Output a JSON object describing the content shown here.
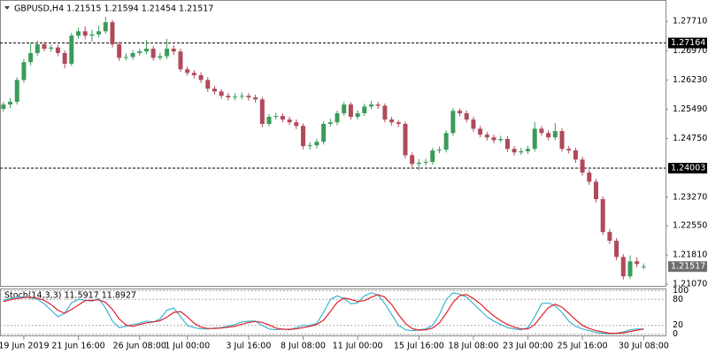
{
  "chart_data": [
    {
      "type": "candlestick",
      "title": "GBPUSD,H4  1.21515 1.21594 1.21454 1.21517",
      "up_color": "#3b9c5a",
      "down_color": "#b04a5a",
      "open": [
        1.255,
        1.2561,
        1.2568,
        1.2623,
        1.2668,
        1.2691,
        1.2713,
        1.2702,
        1.2705,
        1.2691,
        1.2664,
        1.2735,
        1.2746,
        1.2735,
        1.2738,
        1.2746,
        1.2769,
        1.2713,
        1.2679,
        1.2681,
        1.2691,
        1.2695,
        1.2702,
        1.2679,
        1.2683,
        1.2702,
        1.2695,
        1.265,
        1.2641,
        1.2635,
        1.2623,
        1.2601,
        1.2594,
        1.2583,
        1.2579,
        1.2581,
        1.2583,
        1.2579,
        1.2574,
        1.2512,
        1.253,
        1.2532,
        1.2523,
        1.2516,
        1.2507,
        1.2456,
        1.2458,
        1.2467,
        1.2512,
        1.2516,
        1.2539,
        1.2561,
        1.253,
        1.2539,
        1.2556,
        1.2561,
        1.2558,
        1.2523,
        1.2516,
        1.2512,
        1.2433,
        1.2411,
        1.2414,
        1.2416,
        1.2445,
        1.2447,
        1.2489,
        1.2545,
        1.2539,
        1.2523,
        1.25,
        1.2485,
        1.2478,
        1.2471,
        1.2474,
        1.2449,
        1.244,
        1.2443,
        1.2449,
        1.25,
        1.2489,
        1.2478,
        1.2494,
        1.2449,
        1.2445,
        1.2422,
        1.2389,
        1.2366,
        1.2322,
        1.2239,
        1.2217,
        1.2176,
        1.2127,
        1.2165,
        1.21515
      ],
      "high": [
        1.2568,
        1.2577,
        1.263,
        1.2676,
        1.2717,
        1.2722,
        1.272,
        1.2712,
        1.2712,
        1.2698,
        1.2742,
        1.2755,
        1.2758,
        1.275,
        1.276,
        1.2782,
        1.2775,
        1.272,
        1.269,
        1.2698,
        1.2702,
        1.2724,
        1.2709,
        1.2692,
        1.2727,
        1.2711,
        1.2702,
        1.2657,
        1.2648,
        1.2642,
        1.263,
        1.2608,
        1.26,
        1.259,
        1.259,
        1.2592,
        1.259,
        1.2586,
        1.258,
        1.2537,
        1.254,
        1.2539,
        1.253,
        1.2523,
        1.2513,
        1.2466,
        1.2475,
        1.2519,
        1.2525,
        1.2546,
        1.2568,
        1.2567,
        1.2547,
        1.2563,
        1.257,
        1.2568,
        1.2564,
        1.253,
        1.2522,
        1.2518,
        1.244,
        1.2423,
        1.2424,
        1.2452,
        1.2455,
        1.2496,
        1.2552,
        1.2551,
        1.2546,
        1.253,
        1.2507,
        1.2492,
        1.2485,
        1.2482,
        1.2481,
        1.2456,
        1.2452,
        1.2457,
        1.2517,
        1.2507,
        1.2496,
        1.2514,
        1.2501,
        1.2456,
        1.2452,
        1.2429,
        1.2396,
        1.2373,
        1.2329,
        1.2246,
        1.2224,
        1.2183,
        1.218,
        1.2175,
        1.21594
      ],
      "low": [
        1.2543,
        1.2552,
        1.2561,
        1.2616,
        1.266,
        1.2684,
        1.2695,
        1.2694,
        1.2683,
        1.2652,
        1.2658,
        1.2727,
        1.2726,
        1.272,
        1.273,
        1.274,
        1.2705,
        1.2671,
        1.2672,
        1.2674,
        1.2684,
        1.2688,
        1.2672,
        1.2673,
        1.2676,
        1.2686,
        1.2643,
        1.2634,
        1.2627,
        1.2615,
        1.2593,
        1.2586,
        1.2575,
        1.2571,
        1.2572,
        1.2574,
        1.2571,
        1.2566,
        1.2504,
        1.2505,
        1.2523,
        1.2516,
        1.2509,
        1.2499,
        1.2448,
        1.2447,
        1.245,
        1.246,
        1.2505,
        1.2509,
        1.2532,
        1.2523,
        1.2523,
        1.2532,
        1.2549,
        1.255,
        1.2516,
        1.2508,
        1.2504,
        1.2425,
        1.2403,
        1.2395,
        1.2407,
        1.2409,
        1.2438,
        1.244,
        1.2482,
        1.2531,
        1.2516,
        1.2492,
        1.2478,
        1.247,
        1.2463,
        1.2465,
        1.2441,
        1.2432,
        1.2434,
        1.2436,
        1.2442,
        1.2482,
        1.2471,
        1.2471,
        1.2442,
        1.2437,
        1.2414,
        1.2381,
        1.2358,
        1.2314,
        1.2231,
        1.2209,
        1.2168,
        1.2119,
        1.212,
        1.215,
        1.21454
      ],
      "close": [
        1.2561,
        1.2568,
        1.2623,
        1.2668,
        1.2691,
        1.2713,
        1.2702,
        1.2705,
        1.2691,
        1.2664,
        1.2735,
        1.2746,
        1.2735,
        1.2738,
        1.2746,
        1.2769,
        1.2713,
        1.2679,
        1.2681,
        1.2691,
        1.2695,
        1.2702,
        1.2679,
        1.2683,
        1.2702,
        1.2695,
        1.265,
        1.2641,
        1.2635,
        1.2623,
        1.2601,
        1.2594,
        1.2583,
        1.2579,
        1.2581,
        1.2583,
        1.2579,
        1.2574,
        1.2512,
        1.253,
        1.2532,
        1.2523,
        1.2516,
        1.2507,
        1.2456,
        1.2458,
        1.2467,
        1.2512,
        1.2516,
        1.2539,
        1.2561,
        1.253,
        1.2539,
        1.2556,
        1.2561,
        1.2558,
        1.2523,
        1.2516,
        1.2512,
        1.2433,
        1.2411,
        1.2414,
        1.2416,
        1.2445,
        1.2447,
        1.2489,
        1.2545,
        1.2539,
        1.2523,
        1.25,
        1.2485,
        1.2478,
        1.2471,
        1.2474,
        1.2449,
        1.244,
        1.2443,
        1.2449,
        1.25,
        1.2489,
        1.2478,
        1.2494,
        1.2449,
        1.2445,
        1.2422,
        1.2389,
        1.2366,
        1.2322,
        1.2239,
        1.2217,
        1.2176,
        1.2127,
        1.2165,
        1.2158,
        1.21517
      ],
      "xlim": [
        -0.5,
        97.2
      ],
      "xticks": [
        {
          "value": 3,
          "label": "19 Jun 2019"
        },
        {
          "value": 11,
          "label": "21 Jun 16:00"
        },
        {
          "value": 20,
          "label": "26 Jun 08:00"
        },
        {
          "value": 27,
          "label": "1 Jul 00:00"
        },
        {
          "value": 36,
          "label": "3 Jul 16:00"
        },
        {
          "value": 44,
          "label": "8 Jul 08:00"
        },
        {
          "value": 52,
          "label": "11 Jul 00:00"
        },
        {
          "value": 61,
          "label": "15 Jul 16:00"
        },
        {
          "value": 69,
          "label": "18 Jul 08:00"
        },
        {
          "value": 77,
          "label": "23 Jul 00:00"
        },
        {
          "value": 85,
          "label": "25 Jul 16:00"
        },
        {
          "value": 94,
          "label": "30 Jul 08:00"
        }
      ],
      "ylim": [
        1.2103,
        1.2825
      ],
      "yticks": [
        {
          "value": 1.2771,
          "label": "1.27710"
        },
        {
          "value": 1.2697,
          "label": "1.26970"
        },
        {
          "value": 1.2623,
          "label": "1.26230"
        },
        {
          "value": 1.2549,
          "label": "1.25490"
        },
        {
          "value": 1.2475,
          "label": "1.24750"
        },
        {
          "value": 1.2327,
          "label": "1.23270"
        },
        {
          "value": 1.2255,
          "label": "1.22550"
        },
        {
          "value": 1.2181,
          "label": "1.21810"
        },
        {
          "value": 1.2107,
          "label": "1.21070"
        }
      ],
      "levels": [
        1.27164,
        1.24003
      ],
      "last_price": 1.21517
    },
    {
      "type": "line",
      "title": "Stoch(14,3,3) 11.5917 11.8927",
      "series": [
        {
          "color": "#3cb4d2",
          "values": [
            78,
            82,
            85,
            86,
            84,
            80,
            70,
            55,
            40,
            48,
            72,
            80,
            78,
            76,
            82,
            60,
            30,
            15,
            18,
            22,
            25,
            30,
            28,
            35,
            55,
            60,
            40,
            20,
            15,
            12,
            12,
            14,
            15,
            18,
            22,
            28,
            30,
            30,
            20,
            12,
            10,
            12,
            10,
            15,
            20,
            20,
            25,
            50,
            80,
            88,
            82,
            70,
            72,
            88,
            95,
            90,
            70,
            45,
            20,
            10,
            8,
            10,
            12,
            20,
            45,
            80,
            95,
            92,
            85,
            70,
            55,
            40,
            30,
            22,
            15,
            12,
            10,
            15,
            40,
            70,
            72,
            65,
            50,
            30,
            18,
            12,
            8,
            4,
            2,
            1,
            2,
            5,
            10,
            12,
            11.5917
          ]
        },
        {
          "color": "#e0202a",
          "values": [
            75,
            79,
            82,
            84,
            85,
            83,
            78,
            68,
            55,
            48,
            57,
            67,
            77,
            78,
            79,
            73,
            57,
            35,
            21,
            18,
            22,
            26,
            28,
            31,
            39,
            50,
            52,
            40,
            25,
            16,
            13,
            13,
            14,
            16,
            18,
            23,
            27,
            29,
            27,
            21,
            14,
            11,
            11,
            12,
            15,
            18,
            22,
            32,
            52,
            73,
            83,
            80,
            75,
            77,
            85,
            91,
            85,
            68,
            45,
            25,
            13,
            9,
            10,
            14,
            26,
            48,
            73,
            89,
            91,
            82,
            70,
            55,
            42,
            31,
            22,
            16,
            12,
            12,
            22,
            42,
            61,
            69,
            62,
            48,
            33,
            20,
            13,
            8,
            5,
            2,
            2,
            3,
            6,
            9,
            11.8927
          ]
        }
      ],
      "ylim": [
        -5,
        105
      ],
      "yticks": [
        0,
        20,
        80,
        100
      ]
    }
  ]
}
